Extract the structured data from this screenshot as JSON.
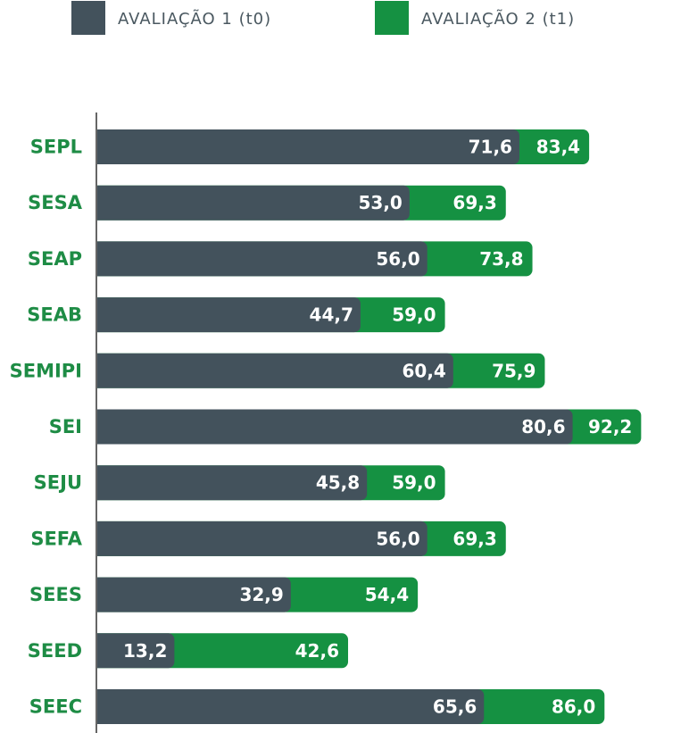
{
  "colors": {
    "t0": "#43525c",
    "t1": "#159142",
    "category_text": "#1e8c45",
    "legend_text": "#4a5860",
    "axis": "#666666"
  },
  "chart_data": {
    "type": "bar",
    "orientation": "horizontal",
    "overlap": true,
    "categories": [
      "SEPL",
      "SESA",
      "SEAP",
      "SEAB",
      "SEMIPI",
      "SEI",
      "SEJU",
      "SEFA",
      "SEES",
      "SEED",
      "SEEC"
    ],
    "series": [
      {
        "name": "AVALIAÇÃO 1 (t0)",
        "values": [
          71.6,
          53.0,
          56.0,
          44.7,
          60.4,
          80.6,
          45.8,
          56.0,
          32.9,
          13.2,
          65.6
        ]
      },
      {
        "name": "AVALIAÇÃO 2 (t1)",
        "values": [
          83.4,
          69.3,
          73.8,
          59.0,
          75.9,
          92.2,
          59.0,
          69.3,
          54.4,
          42.6,
          86.0
        ]
      }
    ],
    "value_labels_t0": [
      "71,6",
      "53,0",
      "56,0",
      "44,7",
      "60,4",
      "80,6",
      "45,8",
      "56,0",
      "32,9",
      "13,2",
      "65,6"
    ],
    "value_labels_t1": [
      "83,4",
      "69,3",
      "73,8",
      "59,0",
      "75,9",
      "92,2",
      "59,0",
      "69,3",
      "54,4",
      "42,6",
      "86,0"
    ],
    "xlim": [
      0,
      100
    ],
    "grid": false,
    "legend_position": "top-left"
  }
}
